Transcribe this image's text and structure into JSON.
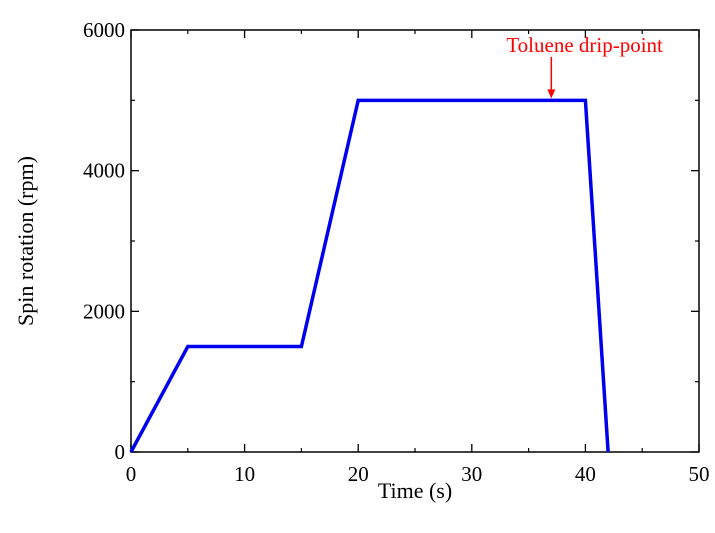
{
  "chart_data": {
    "type": "line",
    "title": "",
    "xlabel": "Time (s)",
    "ylabel": "Spin rotation (rpm)",
    "xlim": [
      0,
      50
    ],
    "ylim": [
      0,
      6000
    ],
    "xticks": [
      0,
      10,
      20,
      30,
      40,
      50
    ],
    "yticks": [
      0,
      2000,
      4000,
      6000
    ],
    "grid": false,
    "series": [
      {
        "color": "#0000ee",
        "points": [
          [
            0,
            0
          ],
          [
            5,
            1500
          ],
          [
            15,
            1500
          ],
          [
            20,
            5000
          ],
          [
            40,
            5000
          ],
          [
            42,
            0
          ]
        ]
      }
    ],
    "annotations": [
      {
        "text": "Toluene drip-point",
        "x": 37,
        "y": 5000,
        "color": "#ff0000"
      }
    ]
  }
}
